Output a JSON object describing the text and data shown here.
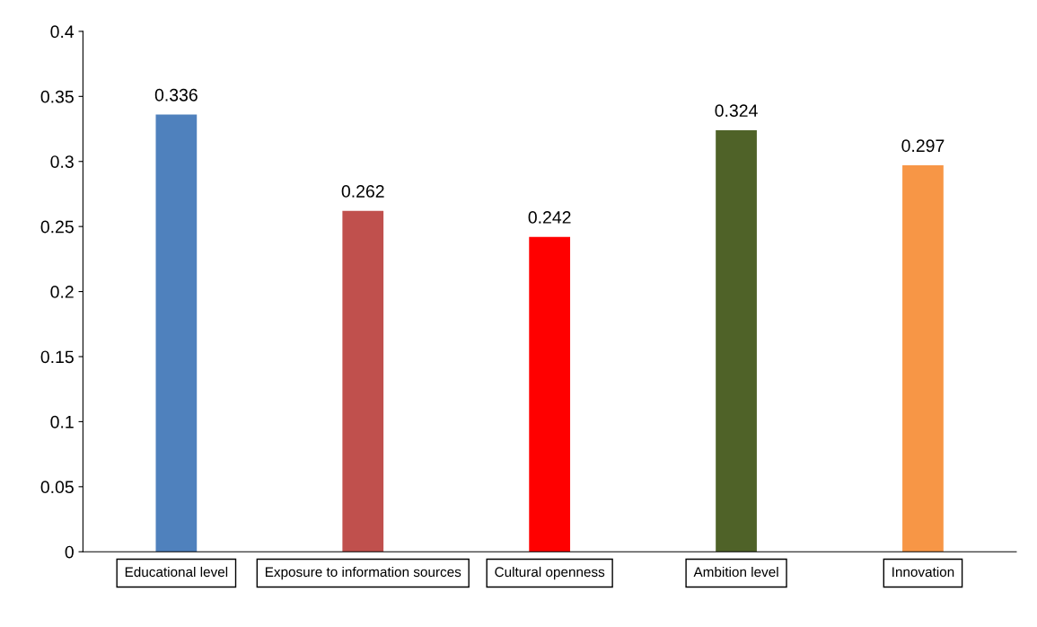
{
  "chart_data": {
    "type": "bar",
    "categories": [
      "Educational level",
      "Exposure to information sources",
      "Cultural openness",
      "Ambition level",
      "Innovation"
    ],
    "values": [
      0.336,
      0.262,
      0.242,
      0.324,
      0.297
    ],
    "colors": [
      "#4f81bd",
      "#c0504d",
      "#ff0000",
      "#4f6228",
      "#f79646"
    ],
    "ylim": [
      0,
      0.4
    ],
    "yticks": [
      0,
      0.05,
      0.1,
      0.15,
      0.2,
      0.25,
      0.3,
      0.35,
      0.4
    ],
    "data_labels": true,
    "grid": false
  }
}
